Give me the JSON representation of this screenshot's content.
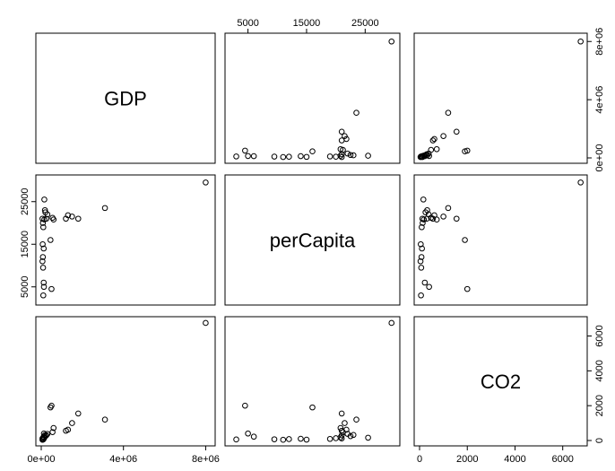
{
  "chart_data": {
    "type": "scatter",
    "variables": [
      "GDP",
      "perCapita",
      "CO2"
    ],
    "axes": {
      "GDP": {
        "range": [
          0,
          8200000
        ],
        "ticks": [
          {
            "value": 0,
            "label": "0e+00"
          },
          {
            "value": 4000000,
            "label": "4e+06"
          },
          {
            "value": 8000000,
            "label": "8e+06"
          }
        ]
      },
      "perCapita": {
        "range": [
          2000,
          30000
        ],
        "ticks": [
          {
            "value": 5000,
            "label": "5000"
          },
          {
            "value": 15000,
            "label": "15000"
          },
          {
            "value": 25000,
            "label": "25000"
          }
        ]
      },
      "CO2": {
        "range": [
          0,
          6800
        ],
        "ticks": [
          {
            "value": 0,
            "label": "0"
          },
          {
            "value": 2000,
            "label": "2000"
          },
          {
            "value": 4000,
            "label": "4000"
          },
          {
            "value": 6000,
            "label": "6000"
          }
        ]
      }
    },
    "points": [
      {
        "GDP": 8000000,
        "perCapita": 29500,
        "CO2": 6750
      },
      {
        "GDP": 3100000,
        "perCapita": 23500,
        "CO2": 1200
      },
      {
        "GDP": 1800000,
        "perCapita": 21000,
        "CO2": 1550
      },
      {
        "GDP": 1500000,
        "perCapita": 21500,
        "CO2": 1000
      },
      {
        "GDP": 1300000,
        "perCapita": 21800,
        "CO2": 620
      },
      {
        "GDP": 1200000,
        "perCapita": 21000,
        "CO2": 560
      },
      {
        "GDP": 600000,
        "perCapita": 20800,
        "CO2": 720
      },
      {
        "GDP": 550000,
        "perCapita": 21200,
        "CO2": 480
      },
      {
        "GDP": 450000,
        "perCapita": 16000,
        "CO2": 1900
      },
      {
        "GDP": 500000,
        "perCapita": 4500,
        "CO2": 2000
      },
      {
        "GDP": 300000,
        "perCapita": 22000,
        "CO2": 380
      },
      {
        "GDP": 250000,
        "perCapita": 21000,
        "CO2": 300
      },
      {
        "GDP": 200000,
        "perCapita": 22500,
        "CO2": 250
      },
      {
        "GDP": 150000,
        "perCapita": 20800,
        "CO2": 180
      },
      {
        "GDP": 180000,
        "perCapita": 23000,
        "CO2": 320
      },
      {
        "GDP": 120000,
        "perCapita": 6000,
        "CO2": 220
      },
      {
        "GDP": 100000,
        "perCapita": 3000,
        "CO2": 60
      },
      {
        "GDP": 150000,
        "perCapita": 25500,
        "CO2": 160
      },
      {
        "GDP": 100000,
        "perCapita": 19000,
        "CO2": 90
      },
      {
        "GDP": 80000,
        "perCapita": 12000,
        "CO2": 80
      },
      {
        "GDP": 120000,
        "perCapita": 14000,
        "CO2": 100
      },
      {
        "GDP": 90000,
        "perCapita": 9500,
        "CO2": 70
      },
      {
        "GDP": 60000,
        "perCapita": 11000,
        "CO2": 40
      },
      {
        "GDP": 70000,
        "perCapita": 15000,
        "CO2": 50
      },
      {
        "GDP": 130000,
        "perCapita": 5000,
        "CO2": 400
      },
      {
        "GDP": 80000,
        "perCapita": 20000,
        "CO2": 130
      },
      {
        "GDP": 60000,
        "perCapita": 21000,
        "CO2": 120
      }
    ]
  }
}
